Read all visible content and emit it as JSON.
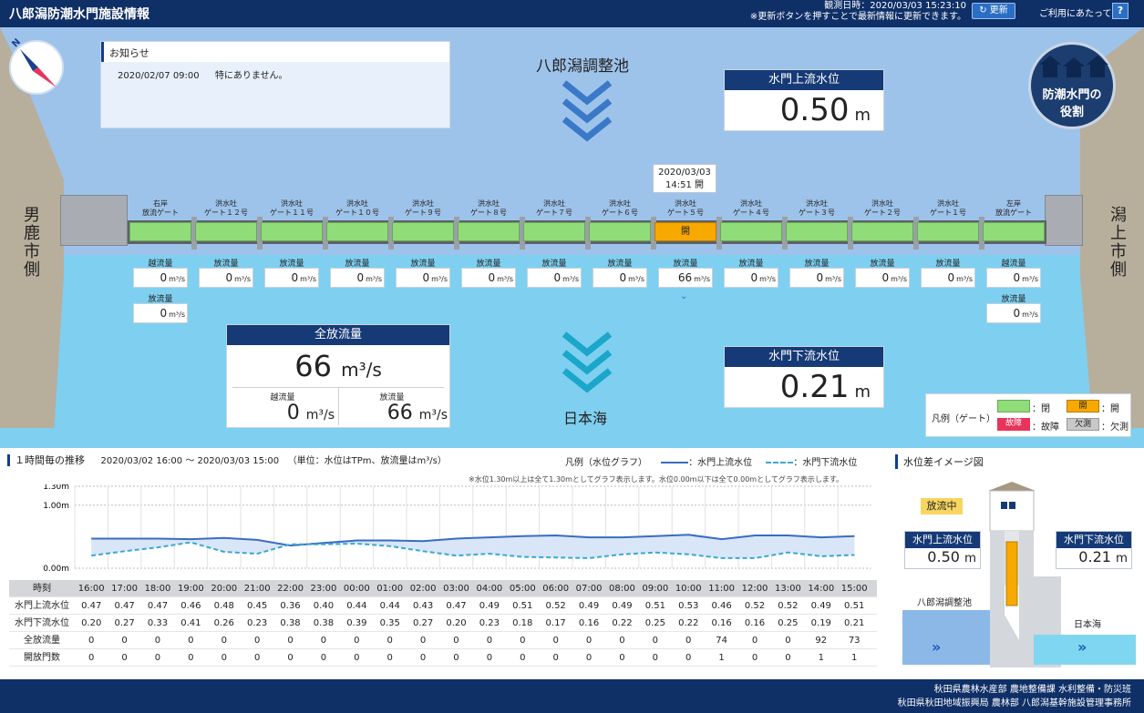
{
  "header": {
    "title": "八郎潟防潮水門施設情報",
    "observed": "観測日時：2020/03/03 15:23:10",
    "note": "※更新ボタンを押すことで最新情報に更新できます。",
    "refresh_label": "更新",
    "usage_label": "ご利用にあたって",
    "help_label": "?"
  },
  "sides": {
    "left": "男鹿市側",
    "right": "潟上市側"
  },
  "compass": {
    "letter": "N"
  },
  "notice": {
    "title": "お知らせ",
    "date": "2020/02/07 09:00",
    "text": "特にありません。"
  },
  "lake": {
    "name": "八郎潟調整池"
  },
  "sea": {
    "name": "日本海"
  },
  "upstream": {
    "title": "水門上流水位",
    "value": "0.50",
    "unit": "m"
  },
  "downstream": {
    "title": "水門下流水位",
    "value": "0.21",
    "unit": "m"
  },
  "role": {
    "line1": "防潮水門の",
    "line2": "役割"
  },
  "gate5_info": {
    "date": "2020/03/03",
    "time": "14:51 開"
  },
  "gates": [
    {
      "l1": "右岸",
      "l2": "放流ゲート",
      "status": "",
      "flow_label": "越流量",
      "flow": "0",
      "flow2_label": "放流量",
      "flow2": "0"
    },
    {
      "l1": "洪水吐",
      "l2": "ゲート１２号",
      "status": "",
      "flow_label": "放流量",
      "flow": "0"
    },
    {
      "l1": "洪水吐",
      "l2": "ゲート１１号",
      "status": "",
      "flow_label": "放流量",
      "flow": "0"
    },
    {
      "l1": "洪水吐",
      "l2": "ゲート１０号",
      "status": "",
      "flow_label": "放流量",
      "flow": "0"
    },
    {
      "l1": "洪水吐",
      "l2": "ゲート９号",
      "status": "",
      "flow_label": "放流量",
      "flow": "0"
    },
    {
      "l1": "洪水吐",
      "l2": "ゲート８号",
      "status": "",
      "flow_label": "放流量",
      "flow": "0"
    },
    {
      "l1": "洪水吐",
      "l2": "ゲート７号",
      "status": "",
      "flow_label": "放流量",
      "flow": "0"
    },
    {
      "l1": "洪水吐",
      "l2": "ゲート６号",
      "status": "",
      "flow_label": "放流量",
      "flow": "0"
    },
    {
      "l1": "洪水吐",
      "l2": "ゲート５号",
      "status": "開",
      "flow_label": "放流量",
      "flow": "66"
    },
    {
      "l1": "洪水吐",
      "l2": "ゲート４号",
      "status": "",
      "flow_label": "放流量",
      "flow": "0"
    },
    {
      "l1": "洪水吐",
      "l2": "ゲート３号",
      "status": "",
      "flow_label": "放流量",
      "flow": "0"
    },
    {
      "l1": "洪水吐",
      "l2": "ゲート２号",
      "status": "",
      "flow_label": "放流量",
      "flow": "0"
    },
    {
      "l1": "洪水吐",
      "l2": "ゲート１号",
      "status": "",
      "flow_label": "放流量",
      "flow": "0"
    },
    {
      "l1": "左岸",
      "l2": "放流ゲート",
      "status": "",
      "flow_label": "越流量",
      "flow": "0",
      "flow2_label": "放流量",
      "flow2": "0"
    }
  ],
  "flow_unit": "m³/s",
  "total": {
    "title": "全放流量",
    "value": "66",
    "unit": "m³/s",
    "over_label": "越流量",
    "over_value": "0",
    "release_label": "放流量",
    "release_value": "66"
  },
  "legend": {
    "title": "凡例（ゲート）",
    "closed": "：閉",
    "open_box": "開",
    "open": "：開",
    "fault_box": "故障",
    "fault": "：故障",
    "missing_box": "欠測",
    "missing": "：欠測"
  },
  "trend": {
    "title": "１時間毎の推移",
    "range": "2020/03/02 16:00 ～ 2020/03/03 15:00",
    "unit_note": "（単位：水位はTPm、放流量はm³/s）",
    "legend_title": "凡例（水位グラフ）",
    "legend_up": "：水門上流水位",
    "legend_down": "：水門下流水位",
    "graph_note": "※水位1.30m以上は全て1.30mとしてグラフ表示します。水位0.00m以下は全て0.00mとしてグラフ表示します。"
  },
  "chart_data": {
    "type": "line",
    "ylim": [
      0,
      1.3
    ],
    "yticks": [
      "1.30m",
      "1.00m",
      "0.00m"
    ],
    "x": [
      "16:00",
      "17:00",
      "18:00",
      "19:00",
      "20:00",
      "21:00",
      "22:00",
      "23:00",
      "00:00",
      "01:00",
      "02:00",
      "03:00",
      "04:00",
      "05:00",
      "06:00",
      "07:00",
      "08:00",
      "09:00",
      "10:00",
      "11:00",
      "12:00",
      "13:00",
      "14:00",
      "15:00"
    ],
    "series": [
      {
        "name": "水門上流水位",
        "values": [
          0.47,
          0.47,
          0.47,
          0.46,
          0.48,
          0.45,
          0.36,
          0.4,
          0.44,
          0.44,
          0.43,
          0.47,
          0.49,
          0.51,
          0.52,
          0.49,
          0.49,
          0.51,
          0.53,
          0.46,
          0.52,
          0.52,
          0.49,
          0.51
        ]
      },
      {
        "name": "水門下流水位",
        "values": [
          0.2,
          0.27,
          0.33,
          0.41,
          0.26,
          0.23,
          0.38,
          0.38,
          0.39,
          0.35,
          0.27,
          0.2,
          0.23,
          0.18,
          0.17,
          0.16,
          0.22,
          0.25,
          0.22,
          0.16,
          0.16,
          0.25,
          0.19,
          0.21
        ]
      }
    ]
  },
  "table": {
    "time_label": "時刻",
    "rows": [
      {
        "label": "水門上流水位",
        "values": [
          "0.47",
          "0.47",
          "0.47",
          "0.46",
          "0.48",
          "0.45",
          "0.36",
          "0.40",
          "0.44",
          "0.44",
          "0.43",
          "0.47",
          "0.49",
          "0.51",
          "0.52",
          "0.49",
          "0.49",
          "0.51",
          "0.53",
          "0.46",
          "0.52",
          "0.52",
          "0.49",
          "0.51"
        ]
      },
      {
        "label": "水門下流水位",
        "values": [
          "0.20",
          "0.27",
          "0.33",
          "0.41",
          "0.26",
          "0.23",
          "0.38",
          "0.38",
          "0.39",
          "0.35",
          "0.27",
          "0.20",
          "0.23",
          "0.18",
          "0.17",
          "0.16",
          "0.22",
          "0.25",
          "0.22",
          "0.16",
          "0.16",
          "0.25",
          "0.19",
          "0.21"
        ]
      },
      {
        "label": "全放流量",
        "values": [
          "0",
          "0",
          "0",
          "0",
          "0",
          "0",
          "0",
          "0",
          "0",
          "0",
          "0",
          "0",
          "0",
          "0",
          "0",
          "0",
          "0",
          "0",
          "0",
          "74",
          "0",
          "0",
          "92",
          "73"
        ]
      },
      {
        "label": "開放門数",
        "values": [
          "0",
          "0",
          "0",
          "0",
          "0",
          "0",
          "0",
          "0",
          "0",
          "0",
          "0",
          "0",
          "0",
          "0",
          "0",
          "0",
          "0",
          "0",
          "0",
          "1",
          "0",
          "0",
          "1",
          "1"
        ]
      }
    ]
  },
  "image_panel": {
    "title": "水位差イメージ図",
    "state": "放流中",
    "up_title": "水門上流水位",
    "up_value": "0.50",
    "down_title": "水門下流水位",
    "down_value": "0.21",
    "unit": "m",
    "lake": "八郎潟調整池",
    "sea": "日本海"
  },
  "footer": {
    "line1": "秋田県農林水産部 農地整備課 水利整備・防災班",
    "line2": "秋田県秋田地域振興局 農林部 八郎潟基幹施設管理事務所"
  },
  "colors": {
    "header": "#0f2f67",
    "gate_closed": "#90dc78",
    "gate_open": "#f7a900",
    "fault": "#e8335a",
    "missing": "#c8c8c8",
    "up_line": "#3b6cc0",
    "down_line": "#3aa9d2"
  }
}
